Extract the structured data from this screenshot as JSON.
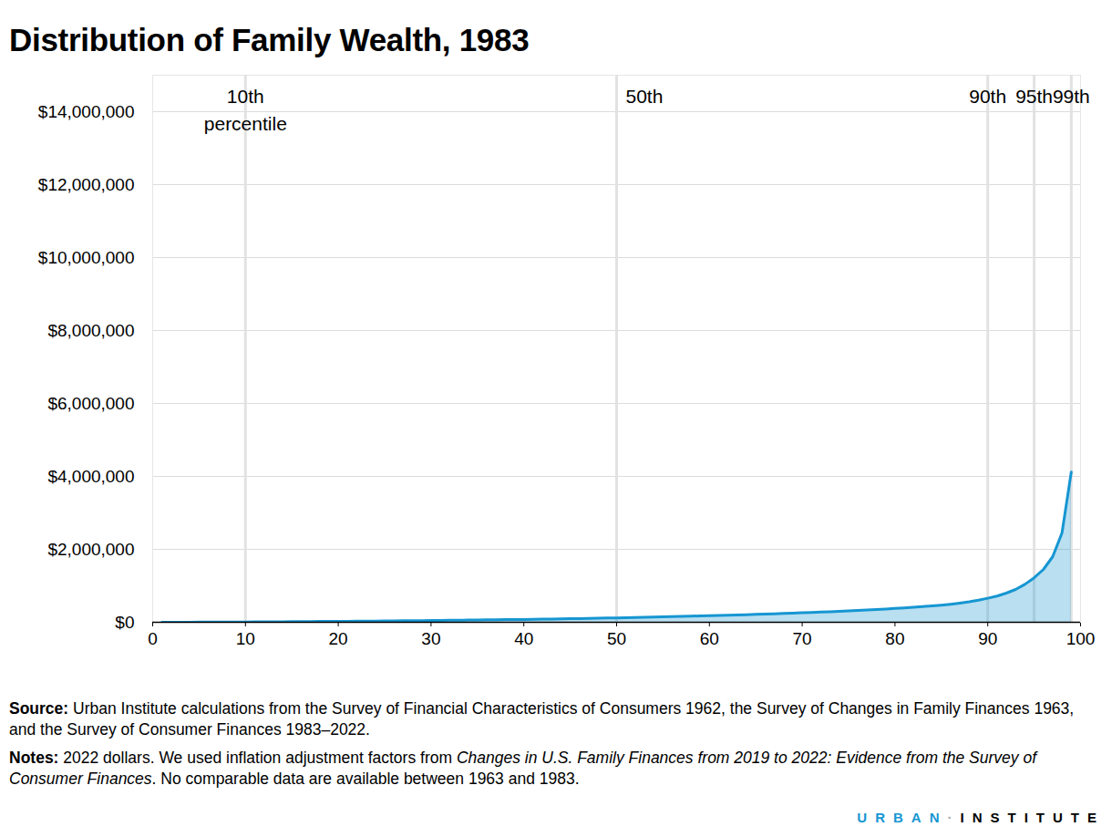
{
  "chart_data": {
    "type": "area",
    "title": "Distribution of Family Wealth, 1983",
    "color": "#1696d2",
    "grid": true,
    "x": [
      1,
      2,
      3,
      4,
      5,
      6,
      7,
      8,
      9,
      10,
      11,
      12,
      13,
      14,
      15,
      16,
      17,
      18,
      19,
      20,
      21,
      22,
      23,
      24,
      25,
      26,
      27,
      28,
      29,
      30,
      31,
      32,
      33,
      34,
      35,
      36,
      37,
      38,
      39,
      40,
      41,
      42,
      43,
      44,
      45,
      46,
      47,
      48,
      49,
      50,
      51,
      52,
      53,
      54,
      55,
      56,
      57,
      58,
      59,
      60,
      61,
      62,
      63,
      64,
      65,
      66,
      67,
      68,
      69,
      70,
      71,
      72,
      73,
      74,
      75,
      76,
      77,
      78,
      79,
      80,
      81,
      82,
      83,
      84,
      85,
      86,
      87,
      88,
      89,
      90,
      91,
      92,
      93,
      94,
      95,
      96,
      97,
      98,
      99
    ],
    "values": [
      0,
      500,
      1500,
      2500,
      3500,
      4500,
      5500,
      6500,
      7500,
      8500,
      10000,
      11500,
      13000,
      14500,
      16000,
      18000,
      20000,
      22000,
      24000,
      26000,
      28000,
      30000,
      32000,
      34000,
      36000,
      38500,
      41000,
      43500,
      46000,
      48500,
      51000,
      54000,
      57000,
      60000,
      63000,
      66000,
      69000,
      72000,
      75000,
      78000,
      82000,
      86000,
      90000,
      94000,
      98000,
      102000,
      106000,
      111000,
      116000,
      121000,
      126000,
      131000,
      137000,
      143000,
      149000,
      155000,
      161000,
      168000,
      175000,
      180000,
      187000,
      194000,
      201000,
      209000,
      217000,
      225000,
      233000,
      242000,
      251000,
      260000,
      270000,
      280000,
      290000,
      301000,
      312000,
      324000,
      337000,
      350000,
      365000,
      380000,
      396000,
      413000,
      431000,
      450000,
      470000,
      495000,
      525000,
      560000,
      605000,
      660000,
      720000,
      800000,
      900000,
      1040000,
      1220000,
      1450000,
      1800000,
      2450000,
      4120000
    ],
    "xlim": [
      0,
      100
    ],
    "xticks": [
      0,
      10,
      20,
      30,
      40,
      50,
      60,
      70,
      80,
      90,
      100
    ],
    "ylim": [
      0,
      15000000
    ],
    "yticks": [
      {
        "value": 0,
        "label": "$0"
      },
      {
        "value": 2000000,
        "label": "$2,000,000"
      },
      {
        "value": 4000000,
        "label": "$4,000,000"
      },
      {
        "value": 6000000,
        "label": "$6,000,000"
      },
      {
        "value": 8000000,
        "label": "$8,000,000"
      },
      {
        "value": 10000000,
        "label": "$10,000,000"
      },
      {
        "value": 12000000,
        "label": "$12,000,000"
      },
      {
        "value": 14000000,
        "label": "$14,000,000"
      }
    ],
    "annotations": [
      {
        "x": 10,
        "label": "10th\npercentile"
      },
      {
        "x": 50,
        "label": "50th"
      },
      {
        "x": 90,
        "label": "90th"
      },
      {
        "x": 95,
        "label": "95th"
      },
      {
        "x": 99,
        "label": "99th"
      }
    ],
    "source": [
      "Source:",
      "Urban Institute calculations from the Survey of Financial Characteristics of Consumers 1962, the Survey of Changes in Family Finances 1963, and the Survey of Consumer Finances 1983–2022."
    ],
    "notes": [
      "Notes:",
      "2022 dollars. We used inflation adjustment factors from ",
      "Changes in U.S. Family Finances from 2019 to 2022: Evidence from the Survey of Consumer Finances",
      ". No comparable data are available between 1963 and 1983."
    ],
    "brand": [
      "URBAN",
      "·",
      "INSTITUTE"
    ]
  }
}
